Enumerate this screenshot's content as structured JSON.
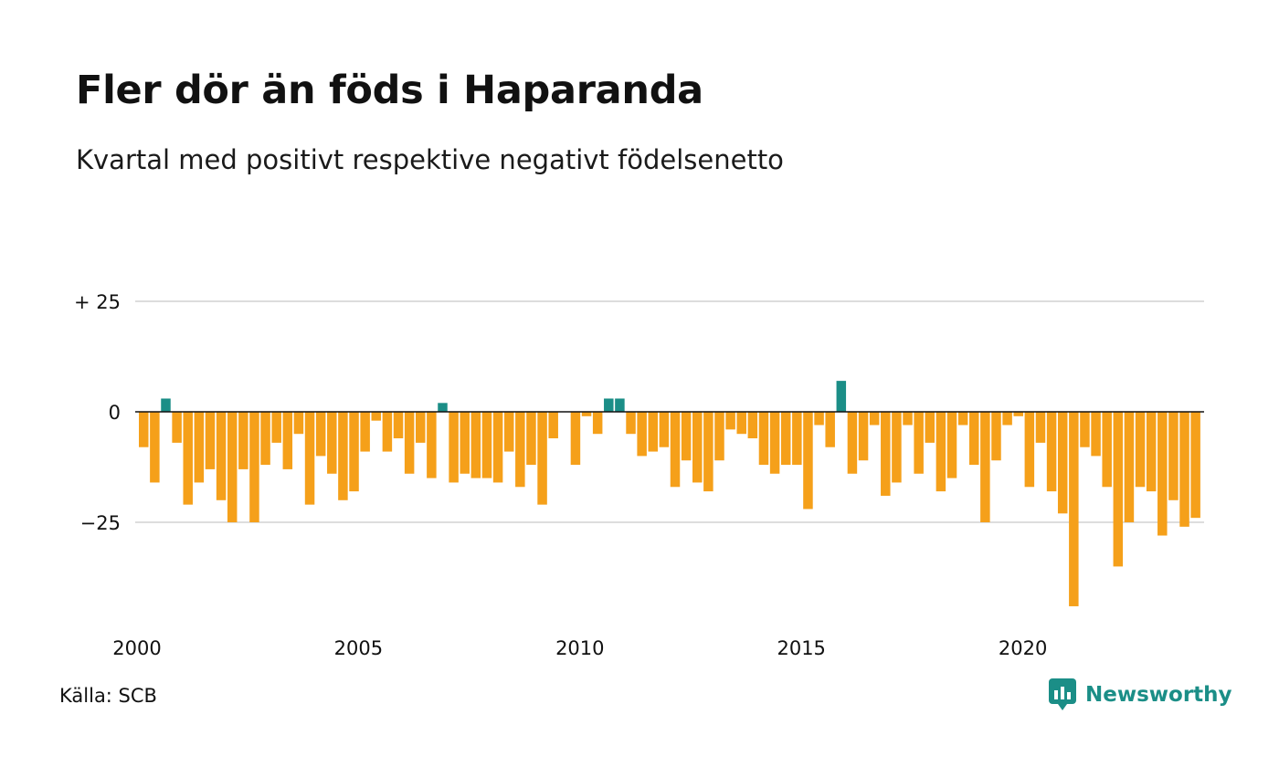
{
  "title": "Fler dör än föds i Haparanda",
  "subtitle": "Kvartal med positivt respektive negativt födelsenetto",
  "source": "Källa: SCB",
  "brand": {
    "name": "Newsworthy",
    "icon": "newsworthy-logo-icon"
  },
  "colors": {
    "positive": "#1b8e87",
    "negative": "#f5a01a",
    "grid": "#dddddd",
    "zero": "#111111",
    "brand": "#1b8e87"
  },
  "chart_data": {
    "type": "bar",
    "x_start": 2000,
    "x_unit": "quarter",
    "ylim": [
      -45,
      25
    ],
    "yticks": [
      {
        "value": 25,
        "label": "+ 25"
      },
      {
        "value": 0,
        "label": "0"
      },
      {
        "value": -25,
        "label": "−25"
      }
    ],
    "xticks": [
      {
        "value": 2000,
        "label": "2000"
      },
      {
        "value": 2005,
        "label": "2005"
      },
      {
        "value": 2010,
        "label": "2010"
      },
      {
        "value": 2015,
        "label": "2015"
      },
      {
        "value": 2020,
        "label": "2020"
      }
    ],
    "grid": true,
    "values": [
      -8,
      -16,
      3,
      -7,
      -21,
      -16,
      -13,
      -20,
      -25,
      -13,
      -25,
      -12,
      -7,
      -13,
      -5,
      -21,
      -10,
      -14,
      -20,
      -18,
      -9,
      -2,
      -9,
      -6,
      -14,
      -7,
      -15,
      2,
      -16,
      -14,
      -15,
      -15,
      -16,
      -9,
      -17,
      -12,
      -21,
      -6,
      0,
      -12,
      -1,
      -5,
      3,
      3,
      -5,
      -10,
      -9,
      -8,
      -17,
      -11,
      -16,
      -18,
      -11,
      -4,
      -5,
      -6,
      -12,
      -14,
      -12,
      -12,
      -22,
      -3,
      -8,
      7,
      -14,
      -11,
      -3,
      -19,
      -16,
      -3,
      -14,
      -7,
      -18,
      -15,
      -3,
      -12,
      -25,
      -11,
      -3,
      -1,
      -17,
      -7,
      -18,
      -23,
      -44,
      -8,
      -10,
      -17,
      -35,
      -25,
      -17,
      -18,
      -28,
      -20,
      -26,
      -24
    ]
  }
}
